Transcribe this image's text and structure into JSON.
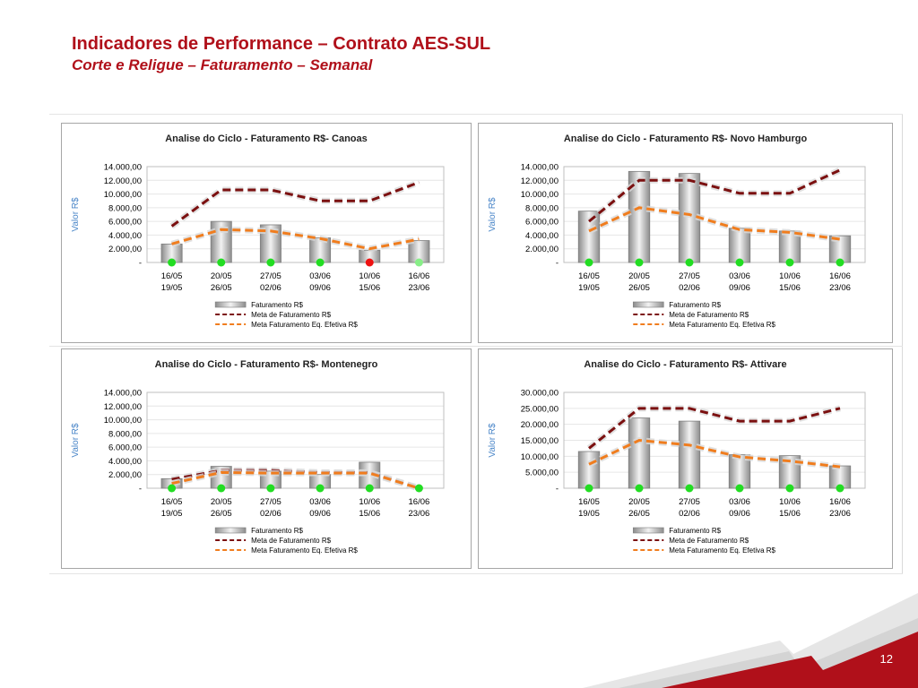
{
  "header": {
    "title": "Indicadores de Performance – Contrato AES-SUL",
    "subtitle": "Corte e Religue – Faturamento – Semanal"
  },
  "page_number": "12",
  "colors": {
    "brand_red": "#b0101a",
    "meta": "#7b1010",
    "meta_efetiva": "#f07d1e",
    "status_ok": "#22dd22",
    "status_bad": "#ee1111",
    "status_light": "#88ee88"
  },
  "chart_data": [
    {
      "type": "bar",
      "title": "Analise do Ciclo - Faturamento R$- Canoas",
      "ylabel": "Valor R$",
      "ylim": [
        0,
        14000
      ],
      "yticks": [
        "-",
        "2.000,00",
        "4.000,00",
        "6.000,00",
        "8.000,00",
        "10.000,00",
        "12.000,00",
        "14.000,00"
      ],
      "categories": [
        [
          "16/05",
          "19/05"
        ],
        [
          "20/05",
          "26/05"
        ],
        [
          "27/05",
          "02/06"
        ],
        [
          "03/06",
          "09/06"
        ],
        [
          "10/06",
          "15/06"
        ],
        [
          "16/06",
          "23/06"
        ]
      ],
      "series": [
        {
          "name": "Faturamento R$",
          "kind": "bar",
          "values": [
            2700,
            6000,
            5500,
            3600,
            1800,
            3200
          ]
        },
        {
          "name": "Meta de Faturamento R$",
          "kind": "line",
          "values": [
            5300,
            10600,
            10600,
            9000,
            9000,
            11700
          ]
        },
        {
          "name": "Meta Faturamento Eq. Efetiva R$",
          "kind": "line",
          "values": [
            2700,
            4800,
            4600,
            3500,
            2000,
            3400
          ]
        }
      ],
      "status": [
        "ok",
        "ok",
        "ok",
        "ok",
        "bad",
        "light"
      ],
      "legend": "bottom"
    },
    {
      "type": "bar",
      "title": "Analise do Ciclo - Faturamento R$- Novo Hamburgo",
      "ylabel": "Valor R$",
      "ylim": [
        0,
        14000
      ],
      "yticks": [
        "-",
        "2.000,00",
        "4.000,00",
        "6.000,00",
        "8.000,00",
        "10.000,00",
        "12.000,00",
        "14.000,00"
      ],
      "categories": [
        [
          "16/05",
          "19/05"
        ],
        [
          "20/05",
          "26/05"
        ],
        [
          "27/05",
          "02/06"
        ],
        [
          "03/06",
          "09/06"
        ],
        [
          "10/06",
          "15/06"
        ],
        [
          "16/06",
          "23/06"
        ]
      ],
      "series": [
        {
          "name": "Faturamento R$",
          "kind": "bar",
          "values": [
            7500,
            13300,
            13000,
            5000,
            4600,
            3900
          ]
        },
        {
          "name": "Meta de Faturamento R$",
          "kind": "line",
          "values": [
            6000,
            12000,
            12000,
            10100,
            10100,
            13500
          ]
        },
        {
          "name": "Meta Faturamento Eq. Efetiva R$",
          "kind": "line",
          "values": [
            4600,
            8000,
            7000,
            4800,
            4400,
            3400
          ]
        }
      ],
      "status": [
        "ok",
        "ok",
        "ok",
        "ok",
        "ok",
        "ok"
      ],
      "legend": "bottom"
    },
    {
      "type": "bar",
      "title": "Analise do Ciclo - Faturamento R$- Montenegro",
      "ylabel": "Valor R$",
      "ylim": [
        0,
        14000
      ],
      "yticks": [
        "-",
        "2.000,00",
        "4.000,00",
        "6.000,00",
        "8.000,00",
        "10.000,00",
        "12.000,00",
        "14.000,00"
      ],
      "categories": [
        [
          "16/05",
          "19/05"
        ],
        [
          "20/05",
          "26/05"
        ],
        [
          "27/05",
          "02/06"
        ],
        [
          "03/06",
          "09/06"
        ],
        [
          "10/06",
          "15/06"
        ],
        [
          "16/06",
          "23/06"
        ]
      ],
      "series": [
        {
          "name": "Faturamento R$",
          "kind": "bar",
          "values": [
            1400,
            3200,
            2500,
            2000,
            3800,
            0
          ]
        },
        {
          "name": "Meta de Faturamento R$",
          "kind": "line",
          "values": [
            1300,
            2600,
            2600,
            2300,
            2300,
            0
          ]
        },
        {
          "name": "Meta Faturamento Eq. Efetiva R$",
          "kind": "line",
          "values": [
            700,
            2300,
            2200,
            2200,
            2200,
            0
          ]
        }
      ],
      "status": [
        "ok",
        "ok",
        "ok",
        "ok",
        "ok",
        "ok"
      ],
      "legend": "bottom"
    },
    {
      "type": "bar",
      "title": "Analise do Ciclo - Faturamento R$- Attivare",
      "ylabel": "Valor R$",
      "ylim": [
        0,
        30000
      ],
      "yticks": [
        "-",
        "5.000,00",
        "10.000,00",
        "15.000,00",
        "20.000,00",
        "25.000,00",
        "30.000,00"
      ],
      "categories": [
        [
          "16/05",
          "19/05"
        ],
        [
          "20/05",
          "26/05"
        ],
        [
          "27/05",
          "02/06"
        ],
        [
          "03/06",
          "09/06"
        ],
        [
          "10/06",
          "15/06"
        ],
        [
          "16/06",
          "23/06"
        ]
      ],
      "series": [
        {
          "name": "Faturamento R$",
          "kind": "bar",
          "values": [
            11500,
            22000,
            21000,
            10500,
            10200,
            7000
          ]
        },
        {
          "name": "Meta de Faturamento R$",
          "kind": "line",
          "values": [
            12500,
            25000,
            25000,
            21000,
            21000,
            25000
          ]
        },
        {
          "name": "Meta Faturamento Eq. Efetiva R$",
          "kind": "line",
          "values": [
            7500,
            15000,
            13500,
            9800,
            8500,
            6700
          ]
        }
      ],
      "status": [
        "ok",
        "ok",
        "ok",
        "ok",
        "ok",
        "ok"
      ],
      "legend": "bottom"
    }
  ]
}
